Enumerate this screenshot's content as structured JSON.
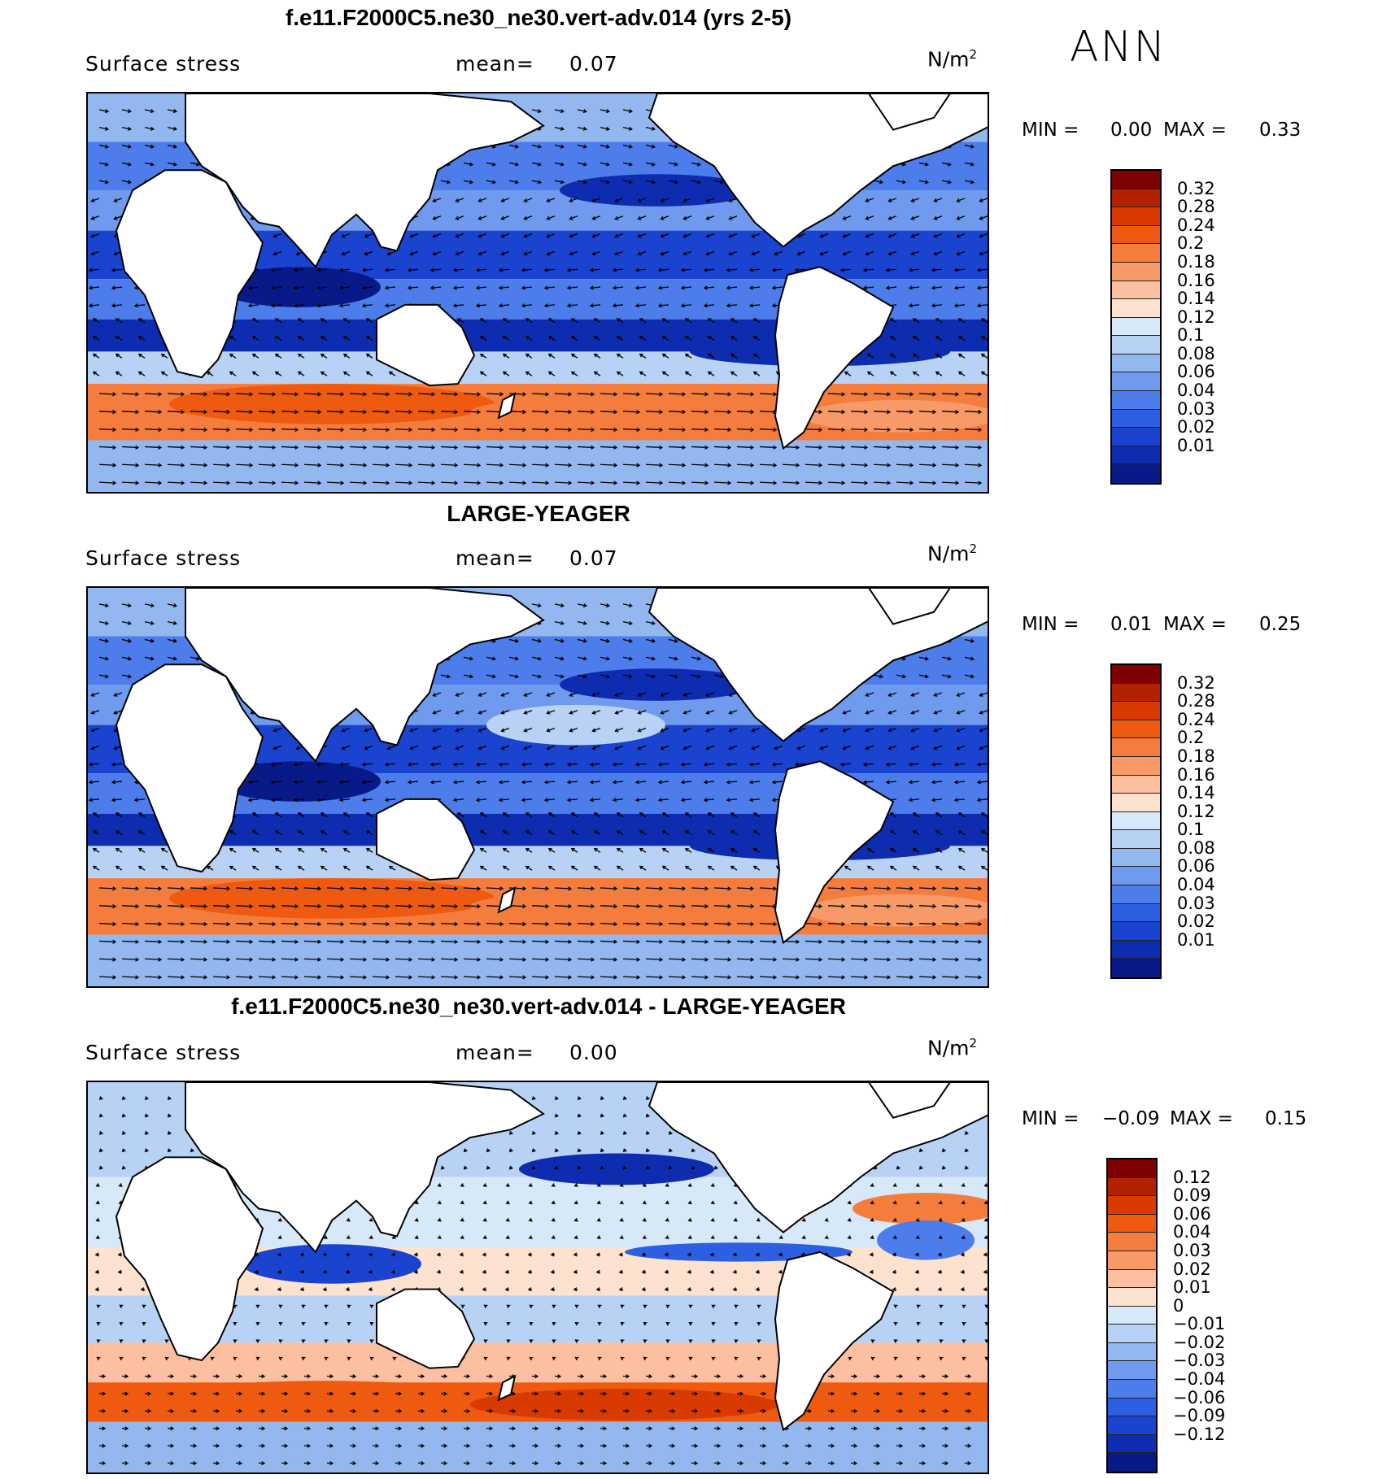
{
  "season": "ANN",
  "units_label": "N/m",
  "units_sup": "2",
  "subtitle_label": "Surface stress",
  "mean_label": "mean=",
  "min_label": "MIN =",
  "max_label": "MAX =",
  "colors": {
    "reds": [
      "#7f0000",
      "#b22200",
      "#d83a00",
      "#ee5a10",
      "#f47c3c",
      "#f89a68",
      "#fcc0a0",
      "#fde3cf"
    ],
    "blues_seq": [
      "#d7e8f8",
      "#b7d2f4",
      "#93b8f0",
      "#6f9aee",
      "#4d7dea",
      "#2c5fe2",
      "#1a43d0",
      "#0d2cb0",
      "#081a88"
    ],
    "blues_diff": [
      "#d7e8f8",
      "#b7d2f4",
      "#93b8f0",
      "#6f9aee",
      "#4d7dea",
      "#2c5fe2",
      "#1a43d0",
      "#0d2cb0",
      "#081a88"
    ]
  },
  "panels": [
    {
      "title": "f.e11.F2000C5.ne30_ne30.vert-adv.014 (yrs 2-5)",
      "mean": "0.07",
      "min": "0.00",
      "max": "0.33",
      "levels": [
        "0.32",
        "0.28",
        "0.24",
        "0.2",
        "0.18",
        "0.16",
        "0.14",
        "0.12",
        "0.1",
        "0.08",
        "0.06",
        "0.04",
        "0.03",
        "0.02",
        "0.01"
      ]
    },
    {
      "title": "LARGE-YEAGER",
      "mean": "0.07",
      "min": "0.01",
      "max": "0.25",
      "levels": [
        "0.32",
        "0.28",
        "0.24",
        "0.2",
        "0.18",
        "0.16",
        "0.14",
        "0.12",
        "0.1",
        "0.08",
        "0.06",
        "0.04",
        "0.03",
        "0.02",
        "0.01"
      ]
    },
    {
      "title": "f.e11.F2000C5.ne30_ne30.vert-adv.014 - LARGE-YEAGER",
      "mean": "0.00",
      "min": "−0.09",
      "max": "0.15",
      "levels": [
        "0.12",
        "0.09",
        "0.06",
        "0.04",
        "0.03",
        "0.02",
        "0.01",
        "0",
        "−0.01",
        "−0.02",
        "−0.03",
        "−0.04",
        "−0.06",
        "−0.09",
        "−0.12"
      ]
    }
  ]
}
